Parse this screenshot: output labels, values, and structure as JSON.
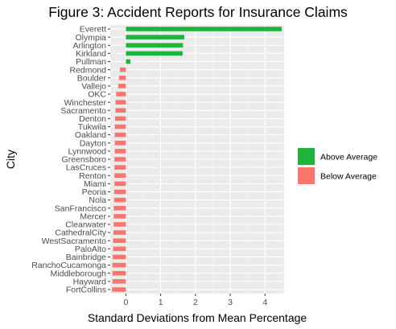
{
  "chart_data": {
    "type": "bar",
    "orientation": "horizontal",
    "title": "Figure 3: Accident Reports for Insurance Claims",
    "xlabel": "Standard Deviations from Mean Percentage",
    "ylabel": "City",
    "xlim": [
      -0.45,
      4.55
    ],
    "xticks": [
      0,
      1,
      2,
      3,
      4
    ],
    "grid": true,
    "legend_position": "right",
    "legend": [
      {
        "name": "Above Average",
        "color": "#21b33b"
      },
      {
        "name": "Below Average",
        "color": "#f8766d"
      }
    ],
    "categories": [
      "Everett",
      "Olympia",
      "Arlington",
      "Kirkland",
      "Pullman",
      "Redmond",
      "Boulder",
      "Vallejo",
      "OKC",
      "Winchester",
      "Sacramento",
      "Denton",
      "Tukwila",
      "Oakland",
      "Dayton",
      "Lynnwood",
      "Greensboro",
      "LasCruces",
      "Renton",
      "Miami",
      "Peoria",
      "Nola",
      "SanFrancisco",
      "Mercer",
      "Clearwater",
      "CathedralCity",
      "WestSacramento",
      "PaloAlto",
      "Bainbridge",
      "RanchoCucamonga",
      "Middleborough",
      "Hayward",
      "FortCollins"
    ],
    "values": [
      4.48,
      1.68,
      1.64,
      1.63,
      0.13,
      -0.17,
      -0.2,
      -0.22,
      -0.28,
      -0.3,
      -0.3,
      -0.31,
      -0.32,
      -0.32,
      -0.32,
      -0.32,
      -0.33,
      -0.33,
      -0.33,
      -0.33,
      -0.34,
      -0.34,
      -0.35,
      -0.35,
      -0.35,
      -0.36,
      -0.37,
      -0.37,
      -0.38,
      -0.39,
      -0.39,
      -0.39,
      -0.4
    ]
  }
}
